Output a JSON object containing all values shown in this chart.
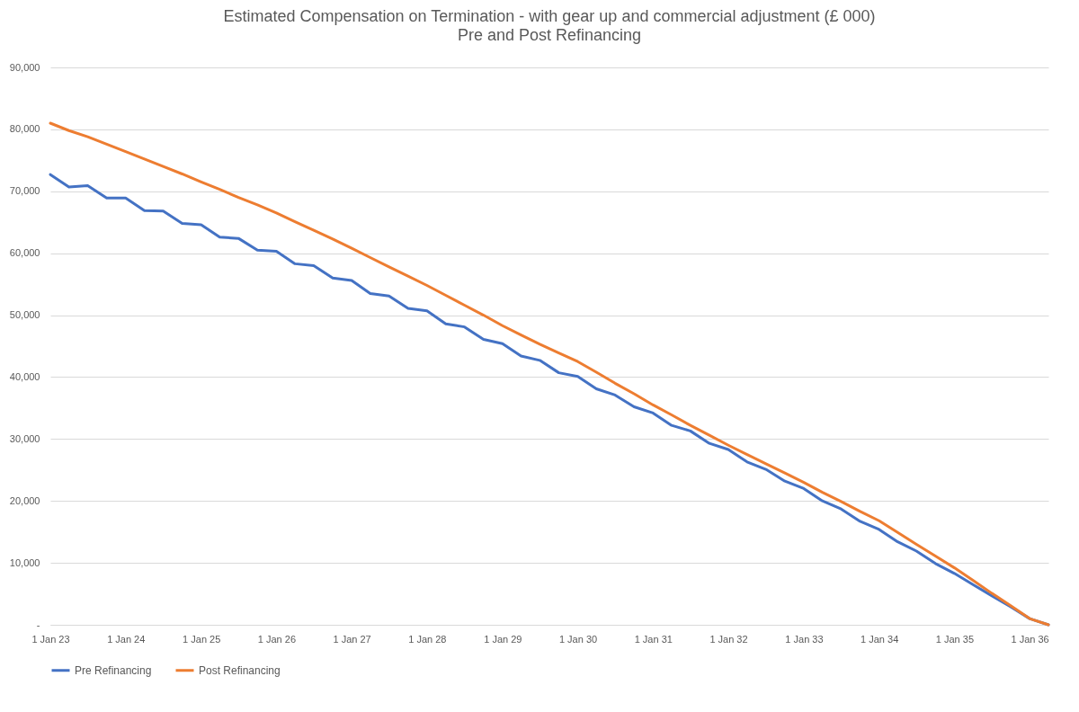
{
  "chart_data": {
    "type": "line",
    "title": "Estimated Compensation on Termination - with gear up and commercial adjustment (£ 000)",
    "subtitle": "Pre and Post Refinancing",
    "x": [
      "2023-01",
      "2023-04",
      "2023-07",
      "2023-10",
      "2024-01",
      "2024-04",
      "2024-07",
      "2024-10",
      "2025-01",
      "2025-04",
      "2025-07",
      "2025-10",
      "2026-01",
      "2026-04",
      "2026-07",
      "2026-10",
      "2027-01",
      "2027-04",
      "2027-07",
      "2027-10",
      "2028-01",
      "2028-04",
      "2028-07",
      "2028-10",
      "2029-01",
      "2029-04",
      "2029-07",
      "2029-10",
      "2030-01",
      "2030-04",
      "2030-07",
      "2030-10",
      "2031-01",
      "2031-04",
      "2031-07",
      "2031-10",
      "2032-01",
      "2032-04",
      "2032-07",
      "2032-10",
      "2033-01",
      "2033-04",
      "2033-07",
      "2033-10",
      "2034-01",
      "2034-04",
      "2034-07",
      "2034-10",
      "2035-01",
      "2035-04",
      "2035-07",
      "2035-10",
      "2036-01",
      "2036-04"
    ],
    "series": [
      {
        "name": "Pre Refinancing",
        "color": "#4472c4",
        "values": [
          72700,
          70700,
          70900,
          68900,
          68900,
          66900,
          66800,
          64800,
          64600,
          62600,
          62400,
          60500,
          60300,
          58300,
          58000,
          56000,
          55600,
          53500,
          53100,
          51100,
          50700,
          48600,
          48100,
          46100,
          45400,
          43400,
          42700,
          40700,
          40100,
          38100,
          37100,
          35200,
          34200,
          32200,
          31300,
          29300,
          28300,
          26300,
          25100,
          23200,
          22000,
          20000,
          18700,
          16700,
          15400,
          13400,
          11900,
          9900,
          8300,
          6500,
          4700,
          2900,
          1000,
          0
        ]
      },
      {
        "name": "Post Refinancing",
        "color": "#ed7d31",
        "values": [
          81000,
          79800,
          78800,
          77600,
          76400,
          75200,
          74000,
          72800,
          71500,
          70300,
          69000,
          67800,
          66500,
          65100,
          63700,
          62300,
          60800,
          59300,
          57800,
          56300,
          54800,
          53200,
          51600,
          50000,
          48300,
          46800,
          45300,
          43900,
          42500,
          40800,
          39000,
          37300,
          35500,
          33900,
          32200,
          30600,
          29000,
          27500,
          26000,
          24500,
          23000,
          21400,
          19900,
          18300,
          16800,
          14900,
          13000,
          11100,
          9200,
          7200,
          5100,
          3100,
          1000,
          0
        ]
      }
    ],
    "xlim": [
      "2023-01",
      "2036-04"
    ],
    "xticks": [
      {
        "value": "2023-01",
        "label": "1 Jan 23"
      },
      {
        "value": "2024-01",
        "label": "1 Jan 24"
      },
      {
        "value": "2025-01",
        "label": "1 Jan 25"
      },
      {
        "value": "2026-01",
        "label": "1 Jan 26"
      },
      {
        "value": "2027-01",
        "label": "1 Jan 27"
      },
      {
        "value": "2028-01",
        "label": "1 Jan 28"
      },
      {
        "value": "2029-01",
        "label": "1 Jan 29"
      },
      {
        "value": "2030-01",
        "label": "1 Jan 30"
      },
      {
        "value": "2031-01",
        "label": "1 Jan 31"
      },
      {
        "value": "2032-01",
        "label": "1 Jan 32"
      },
      {
        "value": "2033-01",
        "label": "1 Jan 33"
      },
      {
        "value": "2034-01",
        "label": "1 Jan 34"
      },
      {
        "value": "2035-01",
        "label": "1 Jan 35"
      },
      {
        "value": "2036-01",
        "label": "1 Jan 36"
      }
    ],
    "ylim": [
      0,
      90000
    ],
    "yticks": [
      {
        "value": 0,
        "label": "-"
      },
      {
        "value": 10000,
        "label": "10,000"
      },
      {
        "value": 20000,
        "label": "20,000"
      },
      {
        "value": 30000,
        "label": "30,000"
      },
      {
        "value": 40000,
        "label": "40,000"
      },
      {
        "value": 50000,
        "label": "50,000"
      },
      {
        "value": 60000,
        "label": "60,000"
      },
      {
        "value": 70000,
        "label": "70,000"
      },
      {
        "value": 80000,
        "label": "80,000"
      },
      {
        "value": 90000,
        "label": "90,000"
      }
    ],
    "grid": "y",
    "legend": "bottom",
    "marker": "none",
    "line_style": "solid"
  }
}
